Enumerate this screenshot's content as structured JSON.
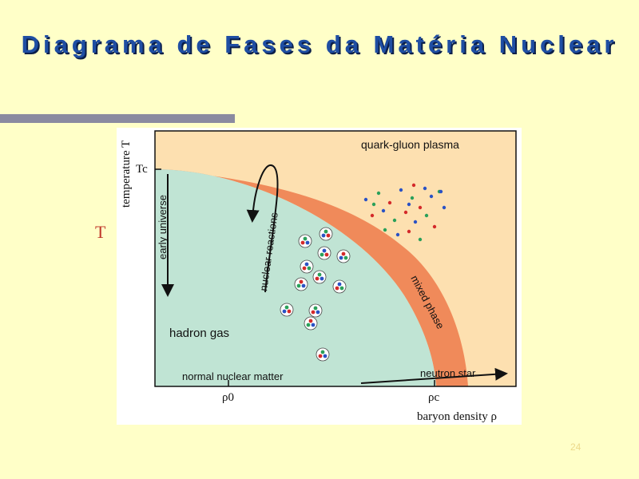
{
  "slide": {
    "title": "Diagrama de Fases da Matéria Nuclear",
    "side_letter": "T",
    "page_number": "24"
  },
  "diagram": {
    "axes": {
      "y_label": "temperature T",
      "x_label": "baryon density ρ",
      "tc_label": "Tc",
      "rho0_label": "ρ0",
      "rhoc_label": "ρc"
    },
    "regions": {
      "qgp": "quark-gluon plasma",
      "hadron_gas": "hadron gas",
      "mixed_phase": "mixed phase"
    },
    "arrows": {
      "early_universe": "early universe",
      "nuclear_reactions": "nuclear reactions",
      "normal_nuclear_matter": "normal nuclear matter",
      "neutron_star": "neutron star"
    },
    "colors": {
      "qgp": "#fde0b0",
      "hadron": "#c0e4d4",
      "mixed": "#f08a5a",
      "quark_red": "#d42a2a",
      "quark_blue": "#2a52c4",
      "quark_green": "#2aa05a"
    }
  }
}
